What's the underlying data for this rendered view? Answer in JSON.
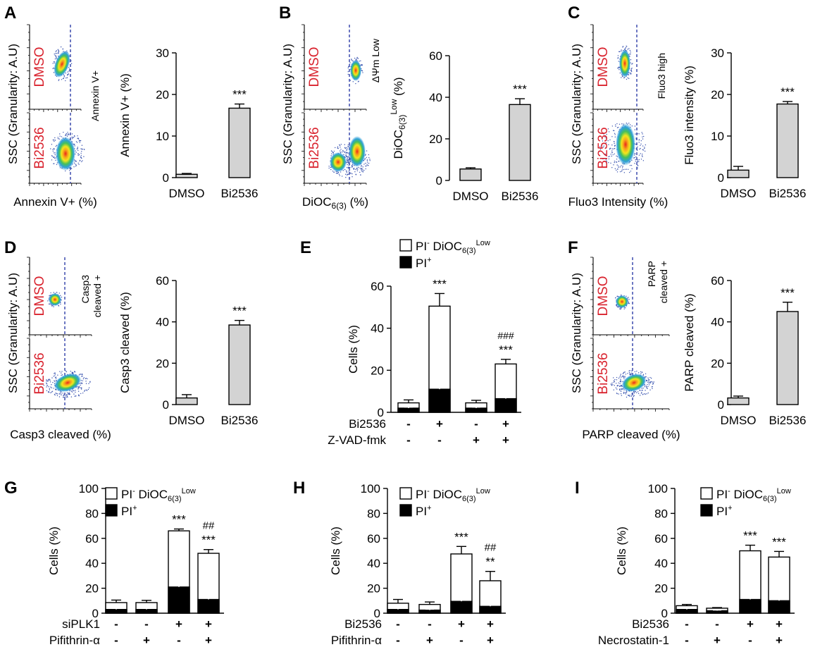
{
  "panels": {
    "A": {
      "label": "A",
      "flow": {
        "top": "DMSO",
        "bottom": "Bi2536",
        "gate": "Annexin V+",
        "ylabel": "SSC (Granularity: A.U)",
        "xlabel": "Annexin V+ (%)"
      },
      "bar": {
        "type": "bar",
        "categories": [
          "DMSO",
          "Bi2536"
        ],
        "values": [
          0.8,
          16.7
        ],
        "errors": [
          0.2,
          1.0
        ],
        "ylabel": "Annexin V+ (%)",
        "ylim": [
          0,
          30
        ],
        "ticks": [
          0,
          10,
          20,
          30
        ],
        "sig": [
          "",
          "***"
        ]
      }
    },
    "B": {
      "label": "B",
      "flow": {
        "top": "DMSO",
        "bottom": "Bi2536",
        "gate": "ΔΨm Low",
        "ylabel": "SSC (Granularity: A.U)",
        "xlabel_main": "DiOC",
        "xlabel_sub": "6(3)",
        "xlabel_end": " (%)"
      },
      "bar": {
        "type": "bar",
        "categories": [
          "DMSO",
          "Bi2536"
        ],
        "values": [
          5.5,
          36.5
        ],
        "errors": [
          0.6,
          2.8
        ],
        "ylabel_main": "DiOC",
        "ylabel_sub": "6(3)",
        "ylabel_sup": "Low",
        "ylabel_end": " (%)",
        "ylim": [
          0,
          60
        ],
        "ticks": [
          0,
          20,
          40,
          60
        ],
        "sig": [
          "",
          "***"
        ]
      }
    },
    "C": {
      "label": "C",
      "flow": {
        "top": "DMSO",
        "bottom": "Bi2536",
        "gate": "Fluo3 high",
        "ylabel": "SSC (Granularity: A.U)",
        "xlabel": "Fluo3 Intensity (%)"
      },
      "bar": {
        "type": "bar",
        "categories": [
          "DMSO",
          "Bi2536"
        ],
        "values": [
          1.8,
          17.7
        ],
        "errors": [
          0.9,
          0.6
        ],
        "ylabel": "Fluo3 intensity (%)",
        "ylim": [
          0,
          30
        ],
        "ticks": [
          0,
          10,
          20,
          30
        ],
        "sig": [
          "",
          "***"
        ]
      }
    },
    "D": {
      "label": "D",
      "flow": {
        "top": "DMSO",
        "bottom": "Bi2536",
        "gate": "Casp3\ncleaved +",
        "ylabel": "SSC (Granularity: A.U)",
        "xlabel": "Casp3 cleaved (%)"
      },
      "bar": {
        "type": "bar",
        "categories": [
          "DMSO",
          "Bi2536"
        ],
        "values": [
          3.2,
          38.5
        ],
        "errors": [
          1.6,
          2.2
        ],
        "ylabel": "Casp3 cleaved (%)",
        "ylim": [
          0,
          60
        ],
        "ticks": [
          0,
          20,
          40,
          60
        ],
        "sig": [
          "",
          "***"
        ]
      }
    },
    "F": {
      "label": "F",
      "flow": {
        "top": "DMSO",
        "bottom": "Bi2536",
        "gate": "PARP\ncleaved +",
        "ylabel": "SSC (Granularity: A.U)",
        "xlabel": "PARP cleaved (%)"
      },
      "bar": {
        "type": "bar",
        "categories": [
          "DMSO",
          "Bi2536"
        ],
        "values": [
          3.2,
          45.0
        ],
        "errors": [
          0.9,
          4.5
        ],
        "ylabel": "PARP cleaved (%)",
        "ylim": [
          0,
          60
        ],
        "ticks": [
          0,
          20,
          40,
          60
        ],
        "sig": [
          "",
          "***"
        ]
      }
    },
    "E": {
      "label": "E",
      "legend": {
        "white_main": "PI",
        "white_sup": "-",
        "white_mid": " DiOC",
        "white_sub": "6(3)",
        "white_sup2": "Low",
        "black_main": "PI",
        "black_sup": "+"
      },
      "stack": {
        "type": "bar",
        "ylabel": "Cells (%)",
        "ylim": [
          0,
          60
        ],
        "ticks": [
          0,
          20,
          40,
          60
        ],
        "total": [
          4.5,
          50.5,
          4.5,
          23.0
        ],
        "total_err": [
          1.4,
          6.0,
          1.2,
          2.2
        ],
        "pi": [
          2.0,
          11.0,
          2.0,
          6.5
        ],
        "pi_err": [
          0.5,
          1.2,
          0.5,
          1.0
        ],
        "sig": [
          "",
          "***",
          "",
          "***"
        ],
        "sig2": [
          "",
          "",
          "",
          "###"
        ],
        "rows": [
          {
            "label": "Bi2536",
            "signs": [
              "-",
              "+",
              "-",
              "+"
            ]
          },
          {
            "label": "Z-VAD-fmk",
            "signs": [
              "-",
              "-",
              "+",
              "+"
            ]
          }
        ]
      }
    },
    "G": {
      "label": "G",
      "legend": {
        "white_main": "PI",
        "white_sup": "-",
        "white_mid": " DiOC",
        "white_sub": "6(3)",
        "white_sup2": "Low",
        "black_main": "PI",
        "black_sup": "+"
      },
      "stack": {
        "type": "bar",
        "ylabel": "Cells (%)",
        "ylim": [
          0,
          100
        ],
        "ticks": [
          0,
          20,
          40,
          60,
          80,
          100
        ],
        "total": [
          8.5,
          8.5,
          66.0,
          48.0
        ],
        "total_err": [
          2.0,
          1.8,
          1.5,
          3.0
        ],
        "pi": [
          3.0,
          3.0,
          21.0,
          11.0
        ],
        "pi_err": [
          0.8,
          0.8,
          2.5,
          1.5
        ],
        "sig": [
          "",
          "",
          "***",
          "***"
        ],
        "sig2": [
          "",
          "",
          "",
          "##"
        ],
        "rows": [
          {
            "label": "siPLK1",
            "signs": [
              "-",
              "-",
              "+",
              "+"
            ]
          },
          {
            "label": "Pifithrin-α",
            "signs": [
              "-",
              "+",
              "-",
              "+"
            ]
          }
        ]
      }
    },
    "H": {
      "label": "H",
      "legend": {
        "white_main": "PI",
        "white_sup": "-",
        "white_mid": " DiOC",
        "white_sub": "6(3)",
        "white_sup2": "Low",
        "black_main": "PI",
        "black_sup": "+"
      },
      "stack": {
        "type": "bar",
        "ylabel": "Cells (%)",
        "ylim": [
          0,
          100
        ],
        "ticks": [
          0,
          20,
          40,
          60,
          80,
          100
        ],
        "total": [
          8.0,
          7.0,
          47.5,
          26.0
        ],
        "total_err": [
          3.0,
          2.0,
          6.0,
          7.5
        ],
        "pi": [
          3.0,
          2.5,
          9.5,
          5.5
        ],
        "pi_err": [
          0.8,
          0.7,
          1.5,
          1.2
        ],
        "sig": [
          "",
          "",
          "***",
          "**"
        ],
        "sig2": [
          "",
          "",
          "",
          "##"
        ],
        "rows": [
          {
            "label": "Bi2536",
            "signs": [
              "-",
              "-",
              "+",
              "+"
            ]
          },
          {
            "label": "Pifithrin-α",
            "signs": [
              "-",
              "+",
              "-",
              "+"
            ]
          }
        ]
      }
    },
    "I": {
      "label": "I",
      "legend": {
        "white_main": "PI",
        "white_sup": "-",
        "white_mid": " DiOC",
        "white_sub": "6(3)",
        "white_sup2": "Low",
        "black_main": "PI",
        "black_sup": "+"
      },
      "stack": {
        "type": "bar",
        "ylabel": "Cells (%)",
        "ylim": [
          0,
          100
        ],
        "ticks": [
          0,
          20,
          40,
          60,
          80,
          100
        ],
        "total": [
          6.0,
          4.0,
          50.0,
          45.0
        ],
        "total_err": [
          1.0,
          0.5,
          4.5,
          4.5
        ],
        "pi": [
          3.0,
          2.0,
          11.0,
          10.0
        ],
        "pi_err": [
          0.8,
          0.5,
          1.5,
          1.5
        ],
        "sig": [
          "",
          "",
          "***",
          "***"
        ],
        "sig2": [
          "",
          "",
          "",
          ""
        ],
        "rows": [
          {
            "label": "Bi2536",
            "signs": [
              "-",
              "-",
              "+",
              "+"
            ]
          },
          {
            "label": "Necrostatin-1",
            "signs": [
              "-",
              "+",
              "-",
              "+"
            ]
          }
        ]
      }
    }
  },
  "chart_data": [
    {
      "type": "bar",
      "categories": [
        "DMSO",
        "Bi2536"
      ],
      "values": [
        0.8,
        16.7
      ],
      "ylabel": "Annexin V+ (%)",
      "ylim": [
        0,
        30
      ]
    },
    {
      "type": "bar",
      "categories": [
        "DMSO",
        "Bi2536"
      ],
      "values": [
        5.5,
        36.5
      ],
      "ylabel": "DiOC6(3)Low (%)",
      "ylim": [
        0,
        60
      ]
    },
    {
      "type": "bar",
      "categories": [
        "DMSO",
        "Bi2536"
      ],
      "values": [
        1.8,
        17.7
      ],
      "ylabel": "Fluo3 intensity (%)",
      "ylim": [
        0,
        30
      ]
    },
    {
      "type": "bar",
      "categories": [
        "DMSO",
        "Bi2536"
      ],
      "values": [
        3.2,
        38.5
      ],
      "ylabel": "Casp3 cleaved (%)",
      "ylim": [
        0,
        60
      ]
    },
    {
      "type": "bar",
      "stacked": true,
      "series": [
        {
          "name": "PI+",
          "values": [
            2.0,
            11.0,
            2.0,
            6.5
          ]
        },
        {
          "name": "PI- DiOC6(3)Low",
          "values": [
            2.5,
            39.5,
            2.5,
            16.5
          ]
        }
      ],
      "ylabel": "Cells (%)",
      "ylim": [
        0,
        60
      ]
    },
    {
      "type": "bar",
      "categories": [
        "DMSO",
        "Bi2536"
      ],
      "values": [
        3.2,
        45.0
      ],
      "ylabel": "PARP cleaved (%)",
      "ylim": [
        0,
        60
      ]
    },
    {
      "type": "bar",
      "stacked": true,
      "series": [
        {
          "name": "PI+",
          "values": [
            3.0,
            3.0,
            21.0,
            11.0
          ]
        },
        {
          "name": "PI- DiOC6(3)Low",
          "values": [
            5.5,
            5.5,
            45.0,
            37.0
          ]
        }
      ],
      "ylabel": "Cells (%)",
      "ylim": [
        0,
        100
      ]
    },
    {
      "type": "bar",
      "stacked": true,
      "series": [
        {
          "name": "PI+",
          "values": [
            3.0,
            2.5,
            9.5,
            5.5
          ]
        },
        {
          "name": "PI- DiOC6(3)Low",
          "values": [
            5.0,
            4.5,
            38.0,
            20.5
          ]
        }
      ],
      "ylabel": "Cells (%)",
      "ylim": [
        0,
        100
      ]
    },
    {
      "type": "bar",
      "stacked": true,
      "series": [
        {
          "name": "PI+",
          "values": [
            3.0,
            2.0,
            11.0,
            10.0
          ]
        },
        {
          "name": "PI- DiOC6(3)Low",
          "values": [
            3.0,
            2.0,
            39.0,
            35.0
          ]
        }
      ],
      "ylabel": "Cells (%)",
      "ylim": [
        0,
        100
      ]
    }
  ]
}
